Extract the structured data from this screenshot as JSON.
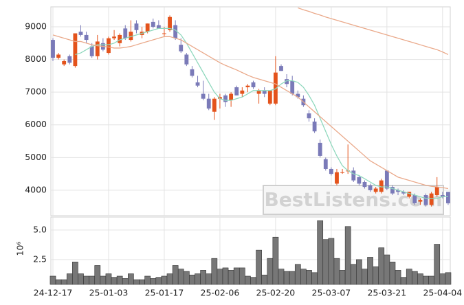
{
  "chart_data": {
    "type": "candlestick",
    "categories": [
      "24-12-17",
      null,
      null,
      null,
      null,
      null,
      null,
      null,
      null,
      null,
      "25-01-03",
      null,
      null,
      null,
      null,
      null,
      null,
      null,
      null,
      null,
      "25-01-17",
      null,
      null,
      null,
      null,
      null,
      null,
      null,
      null,
      null,
      "25-02-06",
      null,
      null,
      null,
      null,
      null,
      null,
      null,
      null,
      null,
      "25-02-20",
      null,
      null,
      null,
      null,
      null,
      null,
      null,
      null,
      null,
      "25-03-07",
      null,
      null,
      null,
      null,
      null,
      null,
      null,
      null,
      null,
      "25-03-21",
      null,
      null,
      null,
      null,
      null,
      null,
      null,
      null,
      null,
      "25-04-04",
      null
    ],
    "open": [
      8600,
      8050,
      7850,
      8100,
      7800,
      8850,
      8750,
      8400,
      8100,
      8500,
      8200,
      8650,
      8500,
      8950,
      8600,
      9100,
      8750,
      8850,
      9150,
      9050,
      8800,
      8900,
      9050,
      8450,
      8150,
      7700,
      7300,
      6950,
      6800,
      6400,
      6800,
      6900,
      6750,
      7150,
      6950,
      7150,
      7300,
      6950,
      7050,
      6650,
      6650,
      7800,
      7400,
      7350,
      6950,
      6800,
      6350,
      6100,
      5450,
      4950,
      4650,
      4200,
      4550,
      4600,
      4600,
      4400,
      4250,
      4150,
      3950,
      3950,
      4600,
      4100,
      4000,
      3950,
      3800,
      3850,
      3650,
      3850,
      3550,
      3850,
      3850,
      3950
    ],
    "high": [
      8650,
      8200,
      8000,
      8150,
      8800,
      9050,
      8850,
      8500,
      8750,
      8650,
      8700,
      8900,
      8800,
      9050,
      9200,
      9200,
      9000,
      9100,
      9250,
      9200,
      9000,
      9350,
      9200,
      8650,
      8200,
      7800,
      7500,
      7350,
      6950,
      6850,
      6950,
      6950,
      7000,
      7200,
      7150,
      7250,
      7350,
      7100,
      7150,
      7050,
      8100,
      7850,
      7550,
      7500,
      7050,
      6900,
      6450,
      6200,
      5550,
      5000,
      4700,
      4650,
      4650,
      5400,
      4700,
      4450,
      4300,
      4200,
      4100,
      4350,
      4600,
      4150,
      4050,
      4000,
      3950,
      3900,
      3750,
      3900,
      3950,
      4400,
      3950,
      3950
    ],
    "low": [
      7950,
      8000,
      7800,
      7850,
      7750,
      8700,
      8500,
      8050,
      8000,
      8250,
      8150,
      8600,
      8400,
      8600,
      8550,
      8800,
      8650,
      8800,
      8950,
      8950,
      8700,
      8850,
      8600,
      8200,
      7800,
      7450,
      7150,
      6750,
      6450,
      6150,
      6500,
      6550,
      6550,
      6900,
      6850,
      7000,
      7100,
      6650,
      6850,
      6600,
      6600,
      7650,
      7150,
      6900,
      6800,
      6550,
      6100,
      5750,
      5000,
      4600,
      4450,
      4150,
      4500,
      4500,
      4250,
      4150,
      4050,
      3950,
      3900,
      3900,
      4000,
      3850,
      3850,
      3850,
      3750,
      3550,
      3550,
      3500,
      3500,
      3800,
      3750,
      3550
    ],
    "close": [
      8050,
      8150,
      7950,
      7900,
      8800,
      8750,
      8600,
      8100,
      8550,
      8300,
      8650,
      8700,
      8750,
      8650,
      8850,
      8900,
      8850,
      9100,
      9000,
      8950,
      8800,
      9300,
      8650,
      8250,
      7850,
      7500,
      7200,
      6800,
      6500,
      6800,
      6850,
      6700,
      6950,
      6900,
      7050,
      7200,
      7150,
      7050,
      6950,
      7050,
      7600,
      7650,
      7250,
      6950,
      6850,
      6600,
      6200,
      5800,
      5050,
      4650,
      4500,
      4550,
      4550,
      4600,
      4300,
      4200,
      4100,
      4000,
      4050,
      4300,
      4050,
      3900,
      3950,
      3900,
      3950,
      3600,
      3700,
      3550,
      3900,
      4100,
      3800,
      3600
    ],
    "up_color": "#e4531c",
    "down_color": "#7a7ab8",
    "ylim": [
      3220,
      9610
    ],
    "yticks": [
      4000,
      5000,
      6000,
      7000,
      8000,
      9000
    ],
    "grid": true,
    "lines": [
      {
        "color": "#8fd8bd",
        "values": [
          null,
          null,
          null,
          null,
          8150,
          8200,
          8300,
          8400,
          8450,
          8450,
          8450,
          8500,
          8600,
          8650,
          8700,
          8750,
          8800,
          8850,
          8900,
          8950,
          8950,
          8950,
          8900,
          8750,
          8500,
          8200,
          7900,
          7600,
          7300,
          7000,
          6800,
          6750,
          6750,
          6800,
          6850,
          6950,
          7050,
          7050,
          7050,
          7050,
          7100,
          7250,
          7350,
          7350,
          7300,
          7150,
          6900,
          6600,
          6200,
          5800,
          5400,
          5050,
          4750,
          4600,
          4500,
          4450,
          4350,
          4250,
          4150,
          4100,
          4100,
          4050,
          4000,
          3950,
          3900,
          3850,
          3800,
          3750,
          3750,
          3750,
          3800,
          3800
        ]
      },
      {
        "color": "#eaa98a",
        "values": [
          8750,
          8700,
          8650,
          8600,
          8550,
          8550,
          8500,
          8450,
          8420,
          8400,
          8380,
          8350,
          8350,
          8370,
          8400,
          8450,
          8500,
          8550,
          8600,
          8650,
          8700,
          8700,
          8650,
          8600,
          8500,
          8400,
          8300,
          8200,
          8100,
          8000,
          7900,
          7820,
          7750,
          7680,
          7600,
          7520,
          7450,
          7400,
          7350,
          7300,
          7250,
          7150,
          7050,
          6950,
          6850,
          6700,
          6550,
          6400,
          6250,
          6100,
          5950,
          5800,
          5650,
          5500,
          5350,
          5200,
          5050,
          4900,
          4800,
          4700,
          4600,
          4500,
          4400,
          4350,
          4300,
          4250,
          4200,
          4150,
          4120,
          4100,
          4080,
          4050
        ]
      },
      {
        "color": "#eaa98a",
        "values": [
          null,
          null,
          null,
          null,
          null,
          null,
          null,
          null,
          null,
          null,
          null,
          null,
          null,
          null,
          null,
          null,
          null,
          null,
          null,
          null,
          null,
          null,
          null,
          null,
          null,
          null,
          null,
          null,
          null,
          null,
          null,
          null,
          null,
          null,
          null,
          null,
          null,
          null,
          null,
          null,
          null,
          null,
          null,
          null,
          9580,
          9520,
          9470,
          9410,
          9360,
          9300,
          9250,
          9200,
          9150,
          9100,
          9050,
          9000,
          8950,
          8900,
          8850,
          8800,
          8750,
          8700,
          8650,
          8600,
          8550,
          8500,
          8450,
          8400,
          8350,
          8300,
          8230,
          8150
        ]
      }
    ],
    "volume": {
      "values": [
        1.1,
        0.8,
        0.8,
        1.3,
        2.3,
        1.3,
        1.1,
        1.1,
        2.0,
        1.1,
        1.3,
        1.0,
        1.1,
        0.9,
        1.3,
        0.8,
        0.8,
        1.1,
        0.9,
        1.0,
        1.1,
        1.3,
        2.0,
        1.7,
        1.5,
        1.2,
        1.3,
        1.6,
        1.3,
        2.6,
        1.7,
        1.8,
        1.6,
        1.8,
        1.8,
        1.1,
        1.0,
        3.3,
        1.2,
        2.6,
        4.4,
        1.7,
        1.5,
        1.5,
        2.1,
        1.7,
        1.6,
        1.4,
        5.8,
        4.2,
        4.3,
        2.6,
        1.6,
        5.3,
        2.1,
        2.5,
        1.7,
        2.7,
        1.9,
        3.5,
        2.9,
        2.3,
        1.6,
        1.0,
        1.7,
        1.5,
        1.3,
        1.1,
        1.1,
        3.8,
        1.3,
        1.4
      ],
      "color": "#777777",
      "ylim": [
        0.4,
        6.1
      ],
      "yticks": [
        {
          "value": 2.5,
          "label": "2.5"
        },
        {
          "value": 5,
          "label": "5.0"
        }
      ],
      "scale_label": "10⁶"
    },
    "watermark": "BestListens.com"
  }
}
